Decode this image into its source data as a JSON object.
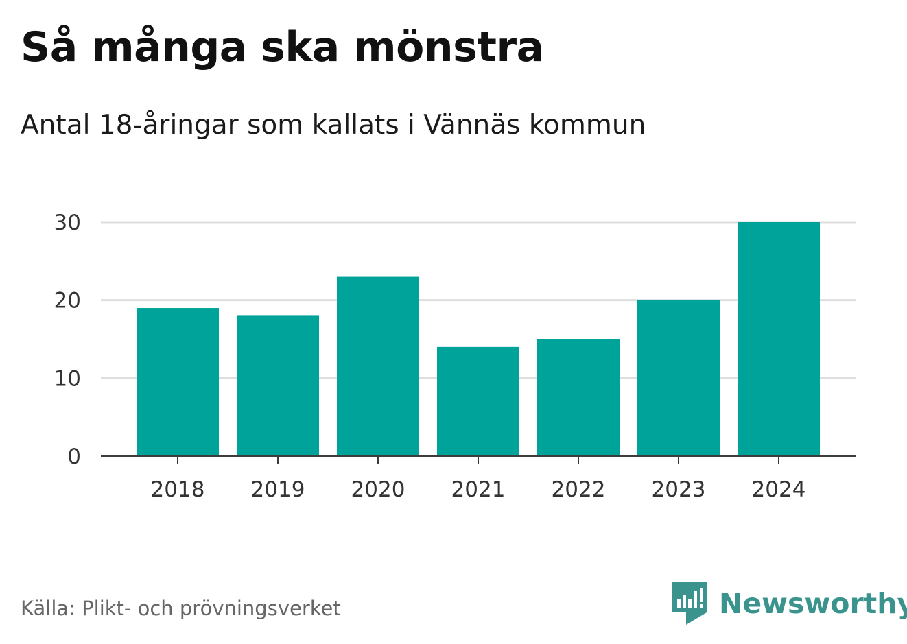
{
  "title": "Så många ska mönstra",
  "subtitle": "Antal 18-åringar som kallats i Vännäs kommun",
  "source": "Källa: Plikt- och prövningsverket",
  "brand": "Newsworthy",
  "colors": {
    "bar": "#00a39a",
    "grid": "#dedede",
    "axis": "#3c3c3c",
    "tick_text": "#333333",
    "brand": "#3a948d"
  },
  "chart_data": {
    "type": "bar",
    "categories": [
      "2018",
      "2019",
      "2020",
      "2021",
      "2022",
      "2023",
      "2024"
    ],
    "values": [
      19,
      18,
      23,
      14,
      15,
      20,
      30
    ],
    "title": "Så många ska mönstra",
    "subtitle": "Antal 18-åringar som kallats i Vännäs kommun",
    "xlabel": "",
    "ylabel": "",
    "ylim": [
      0,
      30
    ],
    "yticks": [
      0,
      10,
      20,
      30
    ],
    "grid": true,
    "legend": "none"
  }
}
